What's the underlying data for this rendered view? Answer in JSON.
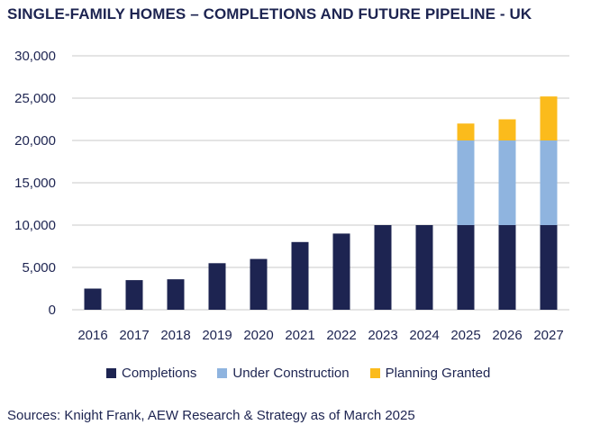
{
  "title": "SINGLE-FAMILY HOMES – COMPLETIONS AND FUTURE PIPELINE - UK",
  "source": "Sources: Knight Frank, AEW Research & Strategy as of March 2025",
  "colors": {
    "completions": "#1d2451",
    "under_construction": "#8fb4df",
    "planning_granted": "#fbbb1c",
    "gridline": "#c8c8c8",
    "text": "#1d2451"
  },
  "chart_data": {
    "type": "bar",
    "stacked": true,
    "categories": [
      "2016",
      "2017",
      "2018",
      "2019",
      "2020",
      "2021",
      "2022",
      "2023",
      "2024",
      "2025",
      "2026",
      "2027"
    ],
    "series": [
      {
        "name": "Completions",
        "color": "#1d2451",
        "values": [
          2500,
          3500,
          3600,
          5500,
          6000,
          8000,
          9000,
          10000,
          10000,
          10000,
          10000,
          10000
        ]
      },
      {
        "name": "Under Construction",
        "color": "#8fb4df",
        "values": [
          0,
          0,
          0,
          0,
          0,
          0,
          0,
          0,
          0,
          10000,
          10000,
          10000
        ]
      },
      {
        "name": "Planning Granted",
        "color": "#fbbb1c",
        "values": [
          0,
          0,
          0,
          0,
          0,
          0,
          0,
          0,
          0,
          2000,
          2500,
          5200
        ]
      }
    ],
    "ylim": [
      0,
      30000
    ],
    "yticks": [
      0,
      5000,
      10000,
      15000,
      20000,
      25000,
      30000
    ],
    "ytick_labels": [
      "0",
      "5,000",
      "10,000",
      "15,000",
      "20,000",
      "25,000",
      "30,000"
    ],
    "grid": true,
    "legend_position": "bottom"
  }
}
